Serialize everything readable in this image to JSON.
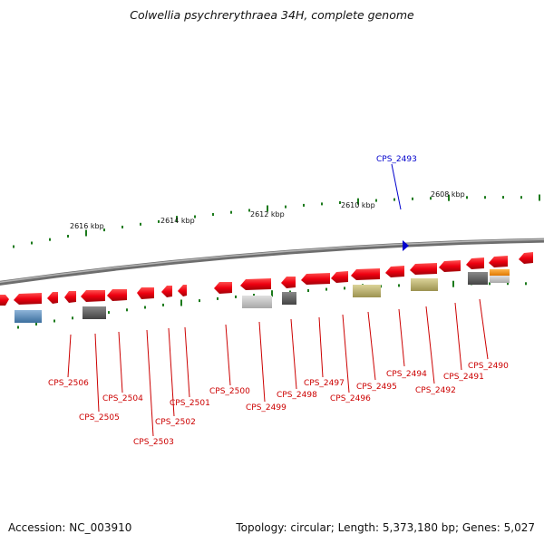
{
  "title": "Colwellia psychrerythraea 34H, complete genome",
  "footer": {
    "accession": "Accession: NC_003910",
    "topology": "Topology: circular; Length: 5,373,180 bp; Genes: 5,027"
  },
  "colors": {
    "gene": "#e8000f",
    "gene_label": "#cc0000",
    "highlight": "#0000cc",
    "tick": "#1b7a1b",
    "backbone": "#888888"
  },
  "kbp_labels": [
    "2616 kbp",
    "2614 kbp",
    "2612 kbp",
    "2610 kbp",
    "2608 kbp"
  ],
  "highlight_gene": "CPS_2493",
  "genes": [
    "CPS_2490",
    "CPS_2491",
    "CPS_2492",
    "CPS_2494",
    "CPS_2495",
    "CPS_2496",
    "CPS_2497",
    "CPS_2498",
    "CPS_2499",
    "CPS_2500",
    "CPS_2501",
    "CPS_2502",
    "CPS_2503",
    "CPS_2504",
    "CPS_2505",
    "CPS_2506"
  ],
  "icons": {
    "highlight_marker": "triangle-marker-icon"
  }
}
